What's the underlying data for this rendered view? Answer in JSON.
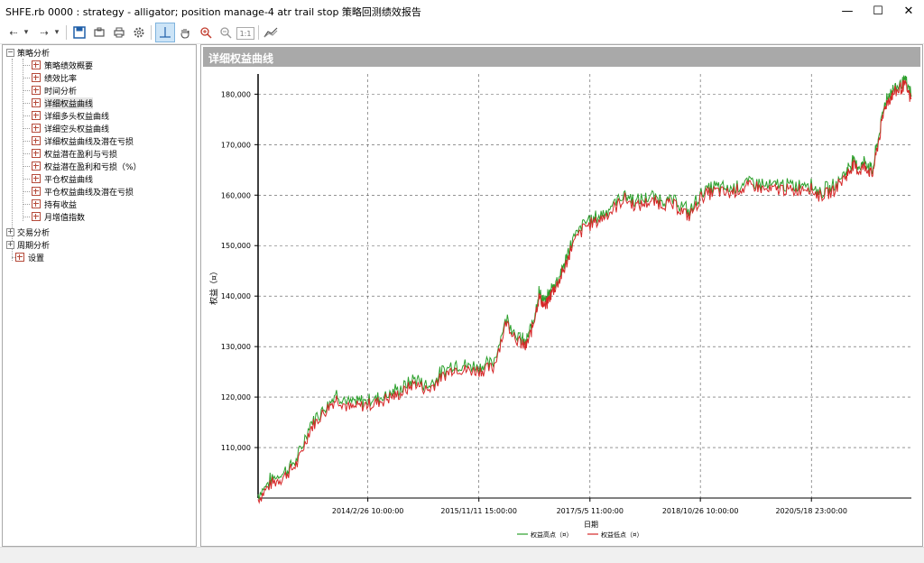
{
  "window": {
    "title": "SHFE.rb 0000 : strategy - alligator; position manage-4 atr trail stop 策略回测绩效报告",
    "minimize": "—",
    "maximize": "☐",
    "close": "✕"
  },
  "toolbar": {
    "back": "⇠",
    "back_dropdown": "▾",
    "forward": "⇢",
    "forward_dropdown": "▾",
    "zoom_box": "1:1"
  },
  "sidebar": {
    "root": "策略分析",
    "items": [
      {
        "label": "策略绩效概要"
      },
      {
        "label": "绩效比率"
      },
      {
        "label": "时间分析"
      },
      {
        "label": "详细权益曲线"
      },
      {
        "label": "详细多头权益曲线"
      },
      {
        "label": "详细空头权益曲线"
      },
      {
        "label": "详细权益曲线及潜在亏损"
      },
      {
        "label": "权益潜在盈利与亏损"
      },
      {
        "label": "权益潜在盈利和亏损（%）"
      },
      {
        "label": "平仓权益曲线"
      },
      {
        "label": "平仓权益曲线及潜在亏损"
      },
      {
        "label": "持有收益"
      },
      {
        "label": "月增值指数"
      }
    ],
    "groups": [
      {
        "label": "交易分析"
      },
      {
        "label": "周期分析"
      },
      {
        "label": "设置"
      }
    ]
  },
  "main": {
    "header": "详细权益曲线"
  },
  "chart_data": {
    "type": "line",
    "ylabel": "权益（¤）",
    "xlabel": "日期",
    "ylim": [
      100000,
      184000
    ],
    "y_ticks": [
      "110,000",
      "120,000",
      "130,000",
      "140,000",
      "150,000",
      "160,000",
      "170,000",
      "180,000"
    ],
    "y_tick_values": [
      110000,
      120000,
      130000,
      140000,
      150000,
      160000,
      170000,
      180000
    ],
    "x_ticks": [
      "2014/2/26 10:00:00",
      "2015/11/11 15:00:00",
      "2017/5/5 11:00:00",
      "2018/10/26 10:00:00",
      "2020/5/18 23:00:00"
    ],
    "x_tick_values": [
      0.168,
      0.338,
      0.508,
      0.677,
      0.847
    ],
    "grid": true,
    "legend_position": "bottom",
    "series": [
      {
        "name": "权益高点（¤）",
        "color": "#2ca02c"
      },
      {
        "name": "权益低点（¤）",
        "color": "#d62728"
      }
    ],
    "x": [
      0,
      0.02,
      0.04,
      0.06,
      0.08,
      0.1,
      0.12,
      0.14,
      0.16,
      0.18,
      0.2,
      0.22,
      0.24,
      0.26,
      0.28,
      0.3,
      0.32,
      0.34,
      0.36,
      0.38,
      0.4,
      0.41,
      0.42,
      0.43,
      0.44,
      0.45,
      0.46,
      0.47,
      0.48,
      0.5,
      0.52,
      0.54,
      0.56,
      0.58,
      0.6,
      0.62,
      0.64,
      0.66,
      0.68,
      0.7,
      0.72,
      0.74,
      0.76,
      0.78,
      0.8,
      0.82,
      0.84,
      0.86,
      0.88,
      0.9,
      0.91,
      0.92,
      0.93,
      0.94,
      0.95,
      0.96,
      0.97,
      0.98,
      0.99,
      1.0
    ],
    "equity": [
      100000,
      103000,
      104500,
      107000,
      114000,
      117000,
      120000,
      118000,
      118500,
      119000,
      120000,
      121000,
      123000,
      121500,
      124000,
      126000,
      125500,
      125500,
      126000,
      135000,
      131000,
      130000,
      134000,
      140000,
      138000,
      141000,
      143000,
      146000,
      150000,
      154000,
      155000,
      157000,
      159500,
      158000,
      159000,
      158500,
      158000,
      156000,
      160000,
      161000,
      160500,
      161500,
      162000,
      161000,
      161500,
      161000,
      162000,
      160000,
      161000,
      164000,
      166000,
      165000,
      166000,
      164000,
      171000,
      178000,
      180000,
      181000,
      182000,
      179000
    ]
  }
}
